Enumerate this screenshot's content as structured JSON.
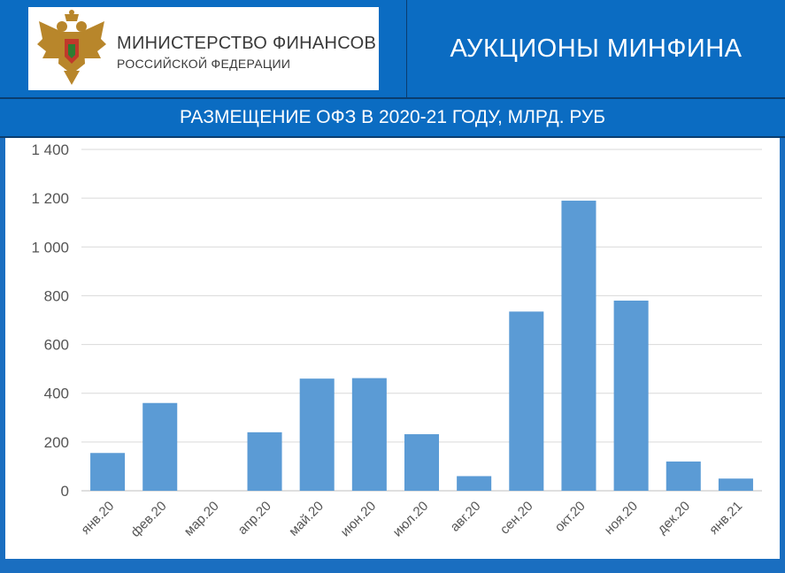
{
  "header": {
    "org_name": "МИНИСТЕРСТВО ФИНАНСОВ",
    "org_sub": "РОССИЙСКОЙ ФЕДЕРАЦИИ",
    "title": "АУКЦИОНЫ МИНФИНА"
  },
  "colors": {
    "brand_blue": "#0b6cc2",
    "bar": "#5b9bd5",
    "grid": "#d9d9d9"
  },
  "chart_data": {
    "type": "bar",
    "title": "РАЗМЕЩЕНИЕ ОФЗ В 2020-21 ГОДУ, МЛРД. РУБ",
    "categories": [
      "янв.20",
      "фев.20",
      "мар.20",
      "апр.20",
      "май.20",
      "июн.20",
      "июл.20",
      "авг.20",
      "сен.20",
      "окт.20",
      "ноя.20",
      "дек.20",
      "янв.21"
    ],
    "values": [
      155,
      360,
      0,
      240,
      460,
      462,
      232,
      60,
      735,
      1190,
      780,
      120,
      50
    ],
    "ylim": [
      0,
      1400
    ],
    "yticks": [
      0,
      200,
      400,
      600,
      800,
      1000,
      1200,
      1400
    ],
    "ytick_labels": [
      "0",
      "200",
      "400",
      "600",
      "800",
      "1 000",
      "1 200",
      "1 400"
    ],
    "xlabel": "",
    "ylabel": "",
    "grid": true
  }
}
